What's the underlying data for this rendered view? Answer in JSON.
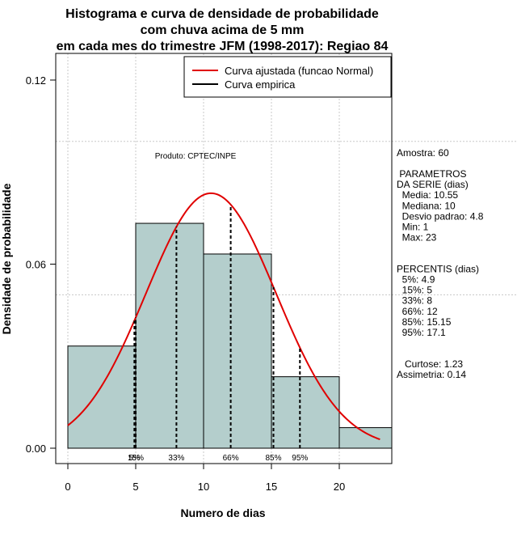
{
  "chart_data": {
    "type": "histogram",
    "title_lines": [
      "Histograma e curva de densidade de probabilidade",
      "com chuva acima de 5 mm",
      "em cada mes do trimestre JFM (1998-2017): Regiao 84"
    ],
    "xlabel": "Numero de dias",
    "ylabel": "Densidade de probabilidade",
    "xlim": [
      -1,
      24
    ],
    "ylim": [
      -0.005,
      0.13
    ],
    "x_ticks": [
      0,
      5,
      10,
      15,
      20
    ],
    "y_ticks": [
      0.0,
      0.06,
      0.12
    ],
    "y_tick_labels": [
      "0.00",
      "0.06",
      "0.12"
    ],
    "grid_x": [
      0,
      5,
      10,
      15,
      20
    ],
    "grid_y": [
      0.05,
      0.1
    ],
    "bins": [
      {
        "x0": 0,
        "x1": 5,
        "density": 0.0333
      },
      {
        "x0": 5,
        "x1": 10,
        "density": 0.0733
      },
      {
        "x0": 10,
        "x1": 15,
        "density": 0.0633
      },
      {
        "x0": 15,
        "x1": 20,
        "density": 0.0233
      },
      {
        "x0": 20,
        "x1": 25,
        "density": 0.0067
      }
    ],
    "bar_color": "#b4cecc",
    "curve_color": "#e00000",
    "normal_fit": {
      "mean": 10.55,
      "sd": 4.8,
      "x_start": 0,
      "x_end": 23
    },
    "percentile_lines": [
      {
        "x": 4.9,
        "label": "5%"
      },
      {
        "x": 5,
        "label": "15%"
      },
      {
        "x": 8,
        "label": "33%"
      },
      {
        "x": 12,
        "label": "66%"
      },
      {
        "x": 15.15,
        "label": "85%"
      },
      {
        "x": 17.1,
        "label": "95%"
      }
    ],
    "legend": [
      {
        "label": "Curva ajustada (funcao Normal)",
        "color": "#e00000"
      },
      {
        "label": "Curva empirica",
        "color": "#000000"
      }
    ],
    "legend_position": "top-right",
    "annotation": "Produto: CPTEC/INPE"
  },
  "stats_panel": {
    "lines": [
      "Amostra: 60",
      "",
      " PARAMETROS",
      "DA SERIE (dias)",
      "  Media: 10.55",
      "  Mediana: 10",
      "  Desvio padrao: 4.8",
      "  Min: 1",
      "  Max: 23",
      "",
      "",
      "PERCENTIS (dias)",
      "  5%: 4.9",
      "  15%: 5",
      "  33%: 8",
      "  66%: 12",
      "  85%: 15.15",
      "  95%: 17.1",
      "",
      "",
      "   Curtose: 1.23",
      "Assimetria: 0.14"
    ]
  }
}
